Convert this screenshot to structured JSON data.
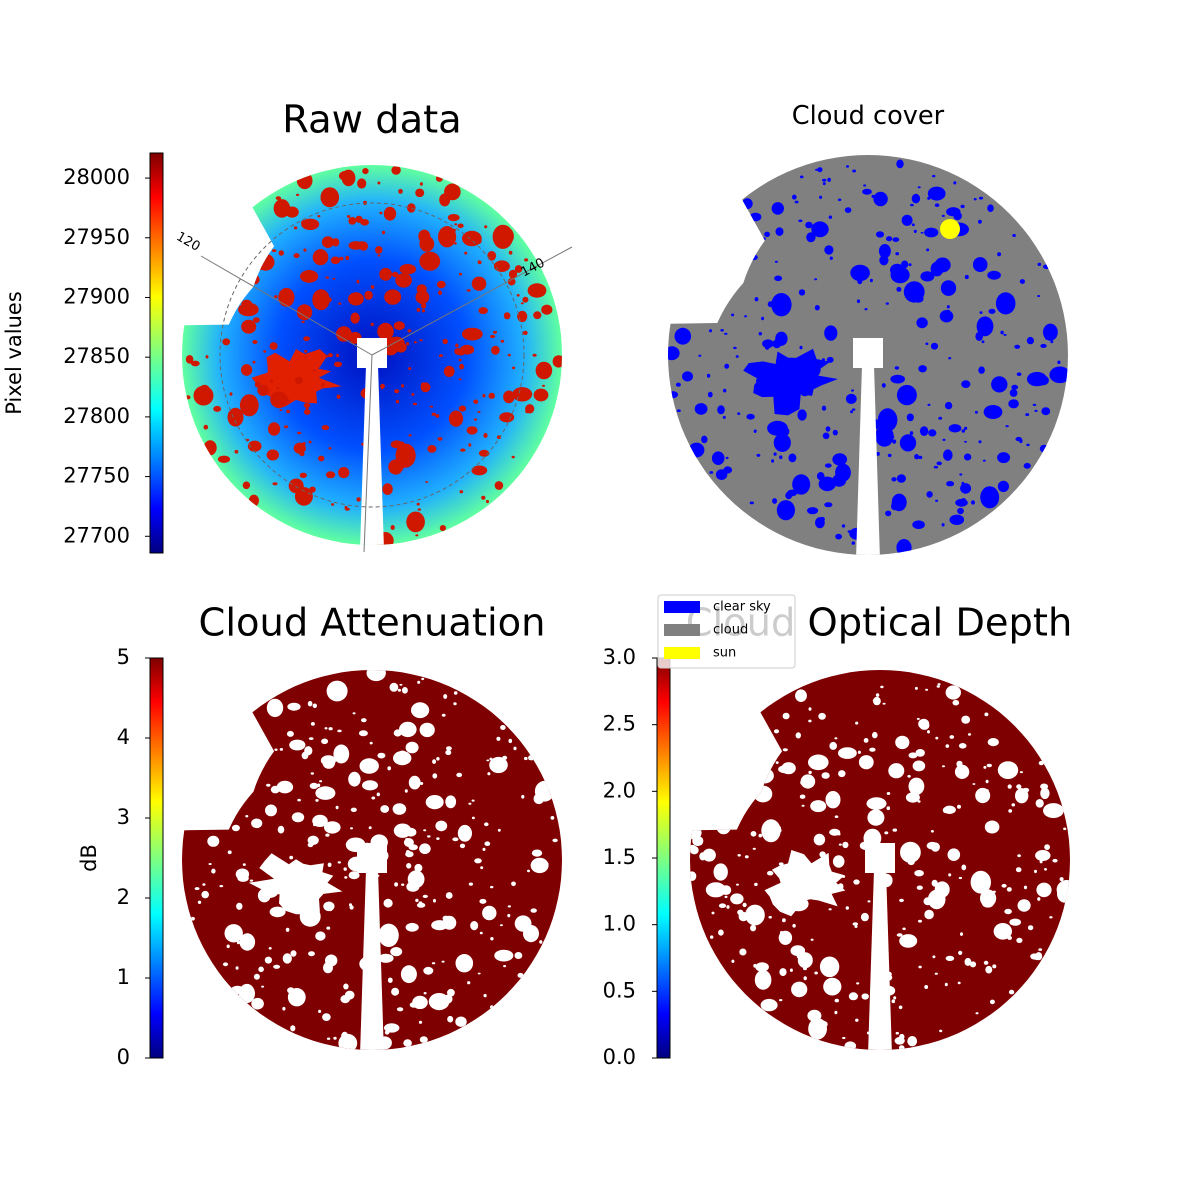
{
  "chart_data": [
    {
      "type": "image",
      "title": "Raw data",
      "colorbar": {
        "label": "Pixel values",
        "cmap": "jet",
        "ylim": [
          27686,
          28021
        ],
        "yticks": [
          27700,
          27750,
          27800,
          27850,
          27900,
          27950,
          28000
        ]
      },
      "annotations": [
        "120",
        "140"
      ]
    },
    {
      "type": "image",
      "title": "Cloud cover",
      "series": [
        {
          "name": "clear sky",
          "color": "#0000ff"
        },
        {
          "name": "cloud",
          "color": "#808080"
        },
        {
          "name": "sun",
          "color": "#ffff00"
        }
      ]
    },
    {
      "type": "image",
      "title": "Cloud Attenuation",
      "colorbar": {
        "label": "dB",
        "cmap": "jet",
        "ylim": [
          0,
          5
        ],
        "yticks": [
          0,
          1,
          2,
          3,
          4,
          5
        ]
      }
    },
    {
      "type": "image",
      "title": "Cloud Optical Depth",
      "colorbar": {
        "cmap": "jet",
        "ylim": [
          0,
          3
        ],
        "yticks": [
          {
            "value": 0,
            "label": "0.0"
          },
          {
            "value": 0.5,
            "label": "0.5"
          },
          {
            "value": 1,
            "label": "1.0"
          },
          {
            "value": 1.5,
            "label": "1.5"
          },
          {
            "value": 2,
            "label": "2.0"
          },
          {
            "value": 2.5,
            "label": "2.5"
          },
          {
            "value": 3,
            "label": "3.0"
          }
        ]
      }
    }
  ]
}
